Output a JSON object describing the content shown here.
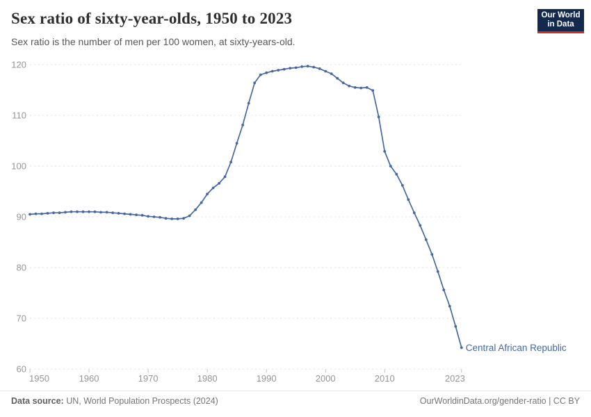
{
  "header": {
    "title": "Sex ratio of sixty-year-olds, 1950 to 2023",
    "subtitle": "Sex ratio is the number of men per 100 women, at sixty-years-old.",
    "logo": {
      "line1": "Our World",
      "line2": "in Data"
    }
  },
  "footer": {
    "source_label": "Data source:",
    "source_text": " UN, World Population Prospects (2024)",
    "credit": "OurWorldinData.org/gender-ratio | CC BY"
  },
  "chart_data": {
    "type": "line",
    "title": "Sex ratio of sixty-year-olds, 1950 to 2023",
    "xlabel": "",
    "ylabel": "",
    "ylim": [
      60,
      120
    ],
    "yticks": [
      60,
      70,
      80,
      90,
      100,
      110,
      120
    ],
    "xticks": [
      1950,
      1960,
      1970,
      1980,
      1990,
      2000,
      2010,
      2023
    ],
    "grid": "horizontal-dashed",
    "legend": "end-of-line-label",
    "colors": {
      "line": "#4668a0",
      "grid": "#e0e0e0",
      "tick": "#c0c0c0",
      "axis_text": "#959595"
    },
    "series": [
      {
        "name": "Central African Republic",
        "x": [
          1950,
          1951,
          1952,
          1953,
          1954,
          1955,
          1956,
          1957,
          1958,
          1959,
          1960,
          1961,
          1962,
          1963,
          1964,
          1965,
          1966,
          1967,
          1968,
          1969,
          1970,
          1971,
          1972,
          1973,
          1974,
          1975,
          1976,
          1977,
          1978,
          1979,
          1980,
          1981,
          1982,
          1983,
          1984,
          1985,
          1986,
          1987,
          1988,
          1989,
          1990,
          1991,
          1992,
          1993,
          1994,
          1995,
          1996,
          1997,
          1998,
          1999,
          2000,
          2001,
          2002,
          2003,
          2004,
          2005,
          2006,
          2007,
          2008,
          2009,
          2010,
          2011,
          2012,
          2013,
          2014,
          2015,
          2016,
          2017,
          2018,
          2019,
          2020,
          2021,
          2022,
          2023
        ],
        "values": [
          90.5,
          90.6,
          90.6,
          90.7,
          90.8,
          90.8,
          90.9,
          91.0,
          91.0,
          91.0,
          91.0,
          91.0,
          90.9,
          90.9,
          90.8,
          90.7,
          90.6,
          90.5,
          90.4,
          90.3,
          90.1,
          90.0,
          89.9,
          89.7,
          89.6,
          89.6,
          89.7,
          90.2,
          91.4,
          92.8,
          94.5,
          95.7,
          96.6,
          97.9,
          100.8,
          104.5,
          108.1,
          112.4,
          116.4,
          118.0,
          118.4,
          118.7,
          118.9,
          119.1,
          119.3,
          119.4,
          119.6,
          119.7,
          119.5,
          119.2,
          118.7,
          118.2,
          117.3,
          116.4,
          115.8,
          115.5,
          115.4,
          115.5,
          114.9,
          109.7,
          102.9,
          100.0,
          98.4,
          96.2,
          93.4,
          90.8,
          88.3,
          85.5,
          82.6,
          79.2,
          75.6,
          72.4,
          68.4,
          64.2
        ]
      }
    ]
  }
}
